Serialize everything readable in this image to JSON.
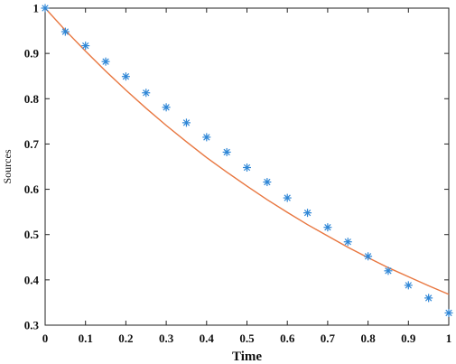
{
  "chart_data": {
    "type": "scatter",
    "title": "",
    "xlabel": "Time",
    "ylabel": "Sources",
    "xlim": [
      0,
      1
    ],
    "ylim": [
      0.3,
      1
    ],
    "xticks": [
      0,
      0.1,
      0.2,
      0.3,
      0.4,
      0.5,
      0.6,
      0.7,
      0.8,
      0.9,
      1
    ],
    "yticks": [
      0.3,
      0.4,
      0.5,
      0.6,
      0.7,
      0.8,
      0.9,
      1
    ],
    "xtick_labels": [
      "0",
      "0.1",
      "0.2",
      "0.3",
      "0.4",
      "0.5",
      "0.6",
      "0.7",
      "0.8",
      "0.9",
      "1"
    ],
    "ytick_labels": [
      "0.3",
      "0.4",
      "0.5",
      "0.6",
      "0.7",
      "0.8",
      "0.9",
      "1"
    ],
    "grid": false,
    "box": true,
    "series": [
      {
        "type": "scatter",
        "marker": "asterisk",
        "color": "#2E86D6",
        "x": [
          0,
          0.05,
          0.1,
          0.15,
          0.2,
          0.25,
          0.3,
          0.35,
          0.4,
          0.45,
          0.5,
          0.55,
          0.6,
          0.65,
          0.7,
          0.75,
          0.8,
          0.85,
          0.9,
          0.95,
          1
        ],
        "y": [
          1.0,
          0.948,
          0.917,
          0.882,
          0.849,
          0.813,
          0.781,
          0.747,
          0.715,
          0.682,
          0.648,
          0.616,
          0.581,
          0.548,
          0.516,
          0.484,
          0.452,
          0.42,
          0.388,
          0.36,
          0.327
        ]
      },
      {
        "type": "line",
        "color": "#E8763F",
        "x": [
          0,
          0.05,
          0.1,
          0.15,
          0.2,
          0.25,
          0.3,
          0.35,
          0.4,
          0.45,
          0.5,
          0.55,
          0.6,
          0.65,
          0.7,
          0.75,
          0.8,
          0.85,
          0.9,
          0.95,
          1
        ],
        "y": [
          1.0,
          0.951,
          0.905,
          0.861,
          0.819,
          0.779,
          0.741,
          0.705,
          0.67,
          0.638,
          0.607,
          0.577,
          0.549,
          0.522,
          0.497,
          0.472,
          0.449,
          0.427,
          0.407,
          0.387,
          0.368
        ]
      }
    ]
  }
}
